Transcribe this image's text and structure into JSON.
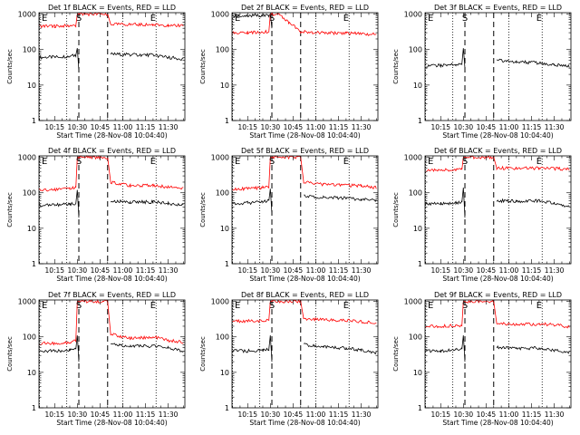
{
  "figure": {
    "time_axis_label": "Start Time (28-Nov-08 10:04:40)",
    "y_axis_label": "Counts/sec",
    "y_scale": "log",
    "y_ticks": [
      "1",
      "10",
      "100",
      "1000"
    ],
    "x_ticks": [
      "10:15",
      "10:30",
      "10:45",
      "11:00",
      "11:15",
      "11:30"
    ],
    "colors": {
      "events": "#000000",
      "lld": "#ff0000",
      "axes": "#000000",
      "background": "#ffffff"
    }
  },
  "chart_data": [
    {
      "type": "line",
      "title": "Det 1f BLACK = Events, RED = LLD",
      "ylabel": "Counts/sec",
      "xlabel": "Start Time (28-Nov-08 10:04:40)",
      "y_log": true,
      "ylim": [
        1,
        1100
      ],
      "xlim": [
        "10:04:40",
        "11:41"
      ],
      "x_ticks": [
        "10:15",
        "10:30",
        "10:45",
        "11:00",
        "11:15",
        "11:30"
      ],
      "markers": {
        "S": "10:31",
        "E": "11:20"
      },
      "dashed_lines": [
        "10:31",
        "10:50"
      ],
      "dotted_lines": [
        "10:05",
        "10:23",
        "11:00",
        "11:22"
      ],
      "series": [
        {
          "name": "BLACK = Events",
          "color": "#000000",
          "x": [
            "10:05",
            "10:15",
            "10:25",
            "10:29",
            "10:30",
            "10:31",
            "10:50",
            "10:52",
            "11:05",
            "11:20",
            "11:30",
            "11:40"
          ],
          "values": [
            60,
            62,
            65,
            70,
            110,
            25,
            null,
            75,
            72,
            70,
            60,
            55
          ]
        },
        {
          "name": "RED = LLD",
          "color": "#ff0000",
          "x": [
            "10:05",
            "10:15",
            "10:25",
            "10:29",
            "10:30",
            "10:31",
            "10:50",
            "10:52",
            "11:05",
            "11:20",
            "11:30",
            "11:40"
          ],
          "values": [
            460,
            460,
            470,
            480,
            1000,
            1000,
            1000,
            520,
            510,
            500,
            490,
            470
          ]
        }
      ]
    },
    {
      "type": "line",
      "title": "Det 2f BLACK = Events, RED = LLD",
      "ylabel": "Counts/sec",
      "xlabel": "Start Time (28-Nov-08 10:04:40)",
      "y_log": true,
      "ylim": [
        1,
        1100
      ],
      "xlim": [
        "10:04:40",
        "11:41"
      ],
      "x_ticks": [
        "10:15",
        "10:30",
        "10:45",
        "11:00",
        "11:15",
        "11:30"
      ],
      "markers": {
        "S": "10:31",
        "E": "11:20"
      },
      "dashed_lines": [
        "10:31",
        "10:50"
      ],
      "dotted_lines": [
        "10:05",
        "10:23",
        "11:00",
        "11:22"
      ],
      "series": [
        {
          "name": "BLACK = Events",
          "color": "#000000",
          "x": [
            "10:05",
            "10:15",
            "10:25",
            "10:29",
            "10:30",
            "10:31",
            "10:50",
            "10:52",
            "11:05",
            "11:20",
            "11:30",
            "11:40"
          ],
          "values": [
            900,
            900,
            920,
            920,
            1000,
            400,
            null,
            null,
            null,
            null,
            null,
            null
          ]
        },
        {
          "name": "RED = LLD",
          "color": "#ff0000",
          "x": [
            "10:05",
            "10:15",
            "10:25",
            "10:29",
            "10:30",
            "10:35",
            "10:42",
            "10:50",
            "11:00",
            "11:20",
            "11:30",
            "11:40"
          ],
          "values": [
            300,
            300,
            310,
            320,
            1000,
            1000,
            600,
            320,
            300,
            290,
            280,
            270
          ]
        }
      ]
    },
    {
      "type": "line",
      "title": "Det 3f BLACK = Events, RED = LLD",
      "ylabel": "Counts/sec",
      "xlabel": "Start Time (28-Nov-08 10:04:40)",
      "y_log": true,
      "ylim": [
        1,
        1100
      ],
      "xlim": [
        "10:04:40",
        "11:41"
      ],
      "x_ticks": [
        "10:15",
        "10:30",
        "10:45",
        "11:00",
        "11:15",
        "11:30"
      ],
      "markers": {
        "S": "10:31",
        "E": "11:20"
      },
      "dashed_lines": [
        "10:31",
        "10:50"
      ],
      "dotted_lines": [
        "10:05",
        "10:23",
        "11:00",
        "11:22"
      ],
      "series": [
        {
          "name": "BLACK = Events",
          "color": "#000000",
          "x": [
            "10:05",
            "10:15",
            "10:25",
            "10:29",
            "10:30",
            "10:31",
            "10:50",
            "10:52",
            "11:05",
            "11:20",
            "11:30",
            "11:40"
          ],
          "values": [
            35,
            36,
            38,
            40,
            110,
            30,
            null,
            50,
            45,
            42,
            38,
            33
          ]
        },
        {
          "name": "RED = LLD",
          "color": "#ff0000",
          "x": [],
          "values": []
        }
      ]
    },
    {
      "type": "line",
      "title": "Det 4f BLACK = Events, RED = LLD",
      "ylabel": "Counts/sec",
      "xlabel": "Start Time (28-Nov-08 10:04:40)",
      "y_log": true,
      "ylim": [
        1,
        1100
      ],
      "xlim": [
        "10:04:40",
        "11:41"
      ],
      "x_ticks": [
        "10:15",
        "10:30",
        "10:45",
        "11:00",
        "11:15",
        "11:30"
      ],
      "markers": {
        "S": "10:31",
        "E": "11:20"
      },
      "dashed_lines": [
        "10:31",
        "10:50"
      ],
      "dotted_lines": [
        "10:05",
        "10:23",
        "11:00",
        "11:22"
      ],
      "series": [
        {
          "name": "BLACK = Events",
          "color": "#000000",
          "x": [
            "10:05",
            "10:15",
            "10:25",
            "10:29",
            "10:30",
            "10:31",
            "10:50",
            "10:52",
            "11:05",
            "11:20",
            "11:30",
            "11:40"
          ],
          "values": [
            45,
            45,
            48,
            50,
            120,
            20,
            null,
            60,
            55,
            55,
            50,
            45
          ]
        },
        {
          "name": "RED = LLD",
          "color": "#ff0000",
          "x": [
            "10:05",
            "10:15",
            "10:25",
            "10:29",
            "10:30",
            "10:31",
            "10:50",
            "10:52",
            "11:05",
            "11:20",
            "11:30",
            "11:40"
          ],
          "values": [
            120,
            125,
            130,
            140,
            1000,
            1000,
            1000,
            200,
            160,
            160,
            145,
            135
          ]
        }
      ]
    },
    {
      "type": "line",
      "title": "Det 5f BLACK = Events, RED = LLD",
      "ylabel": "Counts/sec",
      "xlabel": "Start Time (28-Nov-08 10:04:40)",
      "y_log": true,
      "ylim": [
        1,
        1100
      ],
      "xlim": [
        "10:04:40",
        "11:41"
      ],
      "x_ticks": [
        "10:15",
        "10:30",
        "10:45",
        "11:00",
        "11:15",
        "11:30"
      ],
      "markers": {
        "S": "10:31",
        "E": "11:20"
      },
      "dashed_lines": [
        "10:31",
        "10:50"
      ],
      "dotted_lines": [
        "10:05",
        "10:23",
        "11:00",
        "11:22"
      ],
      "series": [
        {
          "name": "BLACK = Events",
          "color": "#000000",
          "x": [
            "10:05",
            "10:15",
            "10:25",
            "10:29",
            "10:30",
            "10:31",
            "10:50",
            "10:52",
            "11:05",
            "11:20",
            "11:30",
            "11:40"
          ],
          "values": [
            50,
            52,
            55,
            60,
            130,
            25,
            null,
            80,
            75,
            70,
            65,
            60
          ]
        },
        {
          "name": "RED = LLD",
          "color": "#ff0000",
          "x": [
            "10:05",
            "10:15",
            "10:25",
            "10:29",
            "10:30",
            "10:31",
            "10:50",
            "10:52",
            "11:05",
            "11:20",
            "11:30",
            "11:40"
          ],
          "values": [
            130,
            130,
            140,
            150,
            1000,
            1000,
            1000,
            200,
            170,
            165,
            155,
            140
          ]
        }
      ]
    },
    {
      "type": "line",
      "title": "Det 6f BLACK = Events, RED = LLD",
      "ylabel": "Counts/sec",
      "xlabel": "Start Time (28-Nov-08 10:04:40)",
      "y_log": true,
      "ylim": [
        1,
        1100
      ],
      "xlim": [
        "10:04:40",
        "11:41"
      ],
      "x_ticks": [
        "10:15",
        "10:30",
        "10:45",
        "11:00",
        "11:15",
        "11:30"
      ],
      "markers": {
        "S": "10:31",
        "E": "11:20"
      },
      "dashed_lines": [
        "10:31",
        "10:50"
      ],
      "dotted_lines": [
        "10:05",
        "10:23",
        "11:00",
        "11:22"
      ],
      "series": [
        {
          "name": "BLACK = Events",
          "color": "#000000",
          "x": [
            "10:05",
            "10:15",
            "10:25",
            "10:29",
            "10:30",
            "10:31",
            "10:50",
            "10:52",
            "11:05",
            "11:20",
            "11:30",
            "11:40"
          ],
          "values": [
            50,
            50,
            52,
            55,
            140,
            20,
            null,
            60,
            58,
            60,
            50,
            40
          ]
        },
        {
          "name": "RED = LLD",
          "color": "#ff0000",
          "x": [
            "10:05",
            "10:15",
            "10:25",
            "10:29",
            "10:30",
            "10:31",
            "10:50",
            "10:52",
            "11:05",
            "11:20",
            "11:30",
            "11:40"
          ],
          "values": [
            430,
            430,
            440,
            450,
            1000,
            1000,
            1000,
            500,
            490,
            490,
            480,
            470
          ]
        }
      ]
    },
    {
      "type": "line",
      "title": "Det 7f BLACK = Events, RED = LLD",
      "ylabel": "Counts/sec",
      "xlabel": "Start Time (28-Nov-08 10:04:40)",
      "y_log": true,
      "ylim": [
        1,
        1100
      ],
      "xlim": [
        "10:04:40",
        "11:41"
      ],
      "x_ticks": [
        "10:15",
        "10:30",
        "10:45",
        "11:00",
        "11:15",
        "11:30"
      ],
      "markers": {
        "S": "10:31",
        "E": "11:20"
      },
      "dashed_lines": [
        "10:31",
        "10:50"
      ],
      "dotted_lines": [
        "10:05",
        "10:23",
        "11:00",
        "11:22"
      ],
      "series": [
        {
          "name": "BLACK = Events",
          "color": "#000000",
          "x": [
            "10:05",
            "10:15",
            "10:25",
            "10:29",
            "10:30",
            "10:31",
            "10:50",
            "10:52",
            "11:05",
            "11:20",
            "11:30",
            "11:40"
          ],
          "values": [
            40,
            40,
            42,
            45,
            110,
            20,
            null,
            60,
            55,
            55,
            50,
            40
          ]
        },
        {
          "name": "RED = LLD",
          "color": "#ff0000",
          "x": [
            "10:05",
            "10:15",
            "10:25",
            "10:29",
            "10:30",
            "10:31",
            "10:50",
            "10:52",
            "11:05",
            "11:20",
            "11:30",
            "11:40"
          ],
          "values": [
            65,
            65,
            70,
            80,
            1000,
            1000,
            1000,
            120,
            90,
            100,
            80,
            70
          ]
        }
      ]
    },
    {
      "type": "line",
      "title": "Det 8f BLACK = Events, RED = LLD",
      "ylabel": "Counts/sec",
      "xlabel": "Start Time (28-Nov-08 10:04:40)",
      "y_log": true,
      "ylim": [
        1,
        1100
      ],
      "xlim": [
        "10:04:40",
        "11:41"
      ],
      "x_ticks": [
        "10:15",
        "10:30",
        "10:45",
        "11:00",
        "11:15",
        "11:30"
      ],
      "markers": {
        "S": "10:31",
        "E": "11:20"
      },
      "dashed_lines": [
        "10:31",
        "10:50"
      ],
      "dotted_lines": [
        "10:05",
        "10:23",
        "11:00",
        "11:22"
      ],
      "series": [
        {
          "name": "BLACK = Events",
          "color": "#000000",
          "x": [
            "10:05",
            "10:15",
            "10:25",
            "10:29",
            "10:30",
            "10:31",
            "10:50",
            "10:52",
            "11:05",
            "11:20",
            "11:30",
            "11:40"
          ],
          "values": [
            40,
            40,
            42,
            45,
            110,
            20,
            null,
            60,
            52,
            48,
            42,
            35
          ]
        },
        {
          "name": "RED = LLD",
          "color": "#ff0000",
          "x": [
            "10:05",
            "10:15",
            "10:25",
            "10:29",
            "10:30",
            "10:31",
            "10:50",
            "10:52",
            "11:05",
            "11:20",
            "11:30",
            "11:40"
          ],
          "values": [
            280,
            280,
            290,
            300,
            1000,
            1000,
            1000,
            320,
            300,
            290,
            270,
            240
          ]
        }
      ]
    },
    {
      "type": "line",
      "title": "Det 9f BLACK = Events, RED = LLD",
      "ylabel": "Counts/sec",
      "xlabel": "Start Time (28-Nov-08 10:04:40)",
      "y_log": true,
      "ylim": [
        1,
        1100
      ],
      "xlim": [
        "10:04:40",
        "11:41"
      ],
      "x_ticks": [
        "10:15",
        "10:30",
        "10:45",
        "11:00",
        "11:15",
        "11:30"
      ],
      "markers": {
        "S": "10:31",
        "E": "11:20"
      },
      "dashed_lines": [
        "10:31",
        "10:50"
      ],
      "dotted_lines": [
        "10:05",
        "10:23",
        "11:00",
        "11:22"
      ],
      "series": [
        {
          "name": "BLACK = Events",
          "color": "#000000",
          "x": [
            "10:05",
            "10:15",
            "10:25",
            "10:29",
            "10:30",
            "10:31",
            "10:50",
            "10:52",
            "11:05",
            "11:20",
            "11:30",
            "11:40"
          ],
          "values": [
            40,
            40,
            42,
            45,
            110,
            20,
            null,
            50,
            48,
            48,
            42,
            38
          ]
        },
        {
          "name": "RED = LLD",
          "color": "#ff0000",
          "x": [
            "10:05",
            "10:15",
            "10:25",
            "10:29",
            "10:30",
            "10:31",
            "10:50",
            "10:52",
            "11:05",
            "11:20",
            "11:30",
            "11:40"
          ],
          "values": [
            200,
            200,
            205,
            210,
            1000,
            1000,
            1000,
            240,
            230,
            230,
            220,
            190
          ]
        }
      ]
    }
  ]
}
